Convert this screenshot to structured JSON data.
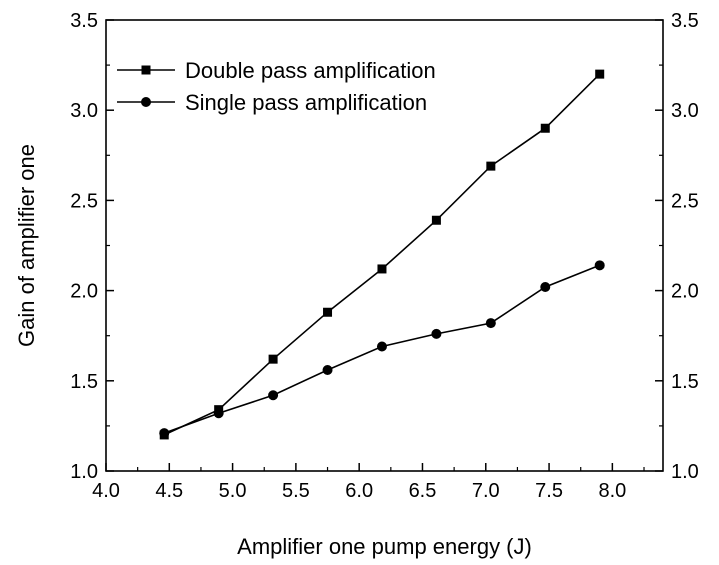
{
  "chart_data": {
    "type": "line",
    "title": "",
    "xlabel": "Amplifier one pump energy (J)",
    "ylabel": "Gain of amplifier one",
    "xlim": [
      4.0,
      8.4
    ],
    "ylim": [
      1.0,
      3.5
    ],
    "x_ticks": [
      "4.0",
      "4.5",
      "5.0",
      "5.5",
      "6.0",
      "6.5",
      "7.0",
      "7.5",
      "8.0"
    ],
    "y_ticks": [
      "1.0",
      "1.5",
      "2.0",
      "2.5",
      "3.0",
      "3.5"
    ],
    "y_ticks_right": [
      "1.0",
      "1.5",
      "2.0",
      "2.5",
      "3.0",
      "3.5"
    ],
    "grid": false,
    "legend_position": "top-left",
    "series": [
      {
        "name": "Double pass amplification",
        "marker": "square",
        "color": "#000000",
        "x": [
          4.46,
          4.89,
          5.32,
          5.75,
          6.18,
          6.61,
          7.04,
          7.47,
          7.9
        ],
        "y": [
          1.2,
          1.34,
          1.62,
          1.88,
          2.12,
          2.39,
          2.69,
          2.9,
          3.2
        ]
      },
      {
        "name": "Single pass amplification",
        "marker": "circle",
        "color": "#000000",
        "x": [
          4.46,
          4.89,
          5.32,
          5.75,
          6.18,
          6.61,
          7.04,
          7.47,
          7.9
        ],
        "y": [
          1.21,
          1.32,
          1.42,
          1.56,
          1.69,
          1.76,
          1.82,
          2.02,
          2.14
        ]
      }
    ]
  }
}
